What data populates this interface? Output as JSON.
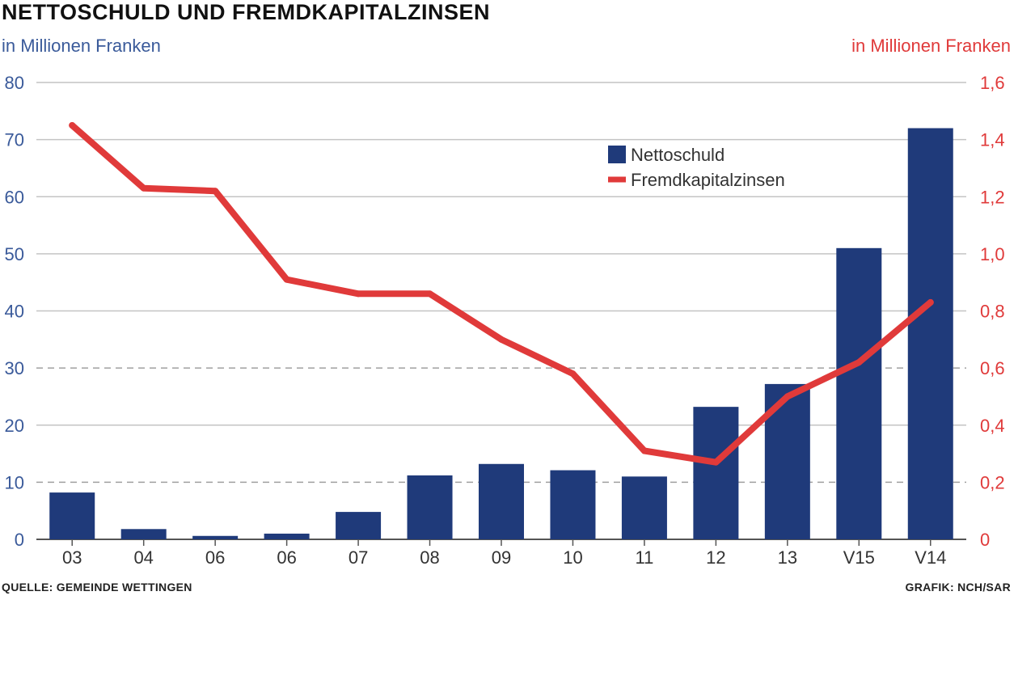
{
  "header": {
    "title": "NETTOSCHULD UND FREMDKAPITALZINSEN",
    "unit_left": "in Millionen Franken",
    "unit_right": "in Millionen Franken"
  },
  "footer": {
    "source": "QUELLE: GEMEINDE WETTINGEN",
    "credit": "GRAFIK: NCH/SAR"
  },
  "colors": {
    "bar": "#1f3a7a",
    "line": "#e03a3a",
    "axis_left": "#3a5a9a",
    "axis_right": "#e03a3a"
  },
  "chart_data": {
    "type": "bar",
    "categories": [
      "03",
      "04",
      "06",
      "06",
      "07",
      "08",
      "09",
      "10",
      "11",
      "12",
      "13",
      "V15",
      "V14"
    ],
    "y_left": {
      "lim": [
        0,
        80
      ],
      "ticks": [
        0,
        10,
        20,
        30,
        40,
        50,
        60,
        70,
        80
      ],
      "tick_labels": [
        "0",
        "10",
        "20",
        "30",
        "40",
        "50",
        "60",
        "70",
        "80"
      ]
    },
    "y_right": {
      "lim": [
        0,
        1.6
      ],
      "ticks": [
        0,
        0.2,
        0.4,
        0.6,
        0.8,
        1.0,
        1.2,
        1.4,
        1.6
      ],
      "tick_labels": [
        "0",
        "0,2",
        "0,4",
        "0,6",
        "0,8",
        "1,0",
        "1,2",
        "1,4",
        "1,6"
      ]
    },
    "grid": true,
    "legend_position": "top-right",
    "series": [
      {
        "name": "Nettoschuld",
        "type": "bar",
        "axis": "left",
        "values": [
          8.2,
          1.8,
          0.6,
          1.0,
          4.8,
          11.2,
          13.2,
          12.1,
          11.0,
          23.2,
          27.2,
          51.0,
          72.0
        ]
      },
      {
        "name": "Fremdkapitalzinsen",
        "type": "line",
        "axis": "right",
        "values": [
          1.45,
          1.23,
          1.22,
          0.91,
          0.86,
          0.86,
          0.7,
          0.58,
          0.31,
          0.27,
          0.5,
          0.62,
          0.83
        ]
      }
    ]
  }
}
